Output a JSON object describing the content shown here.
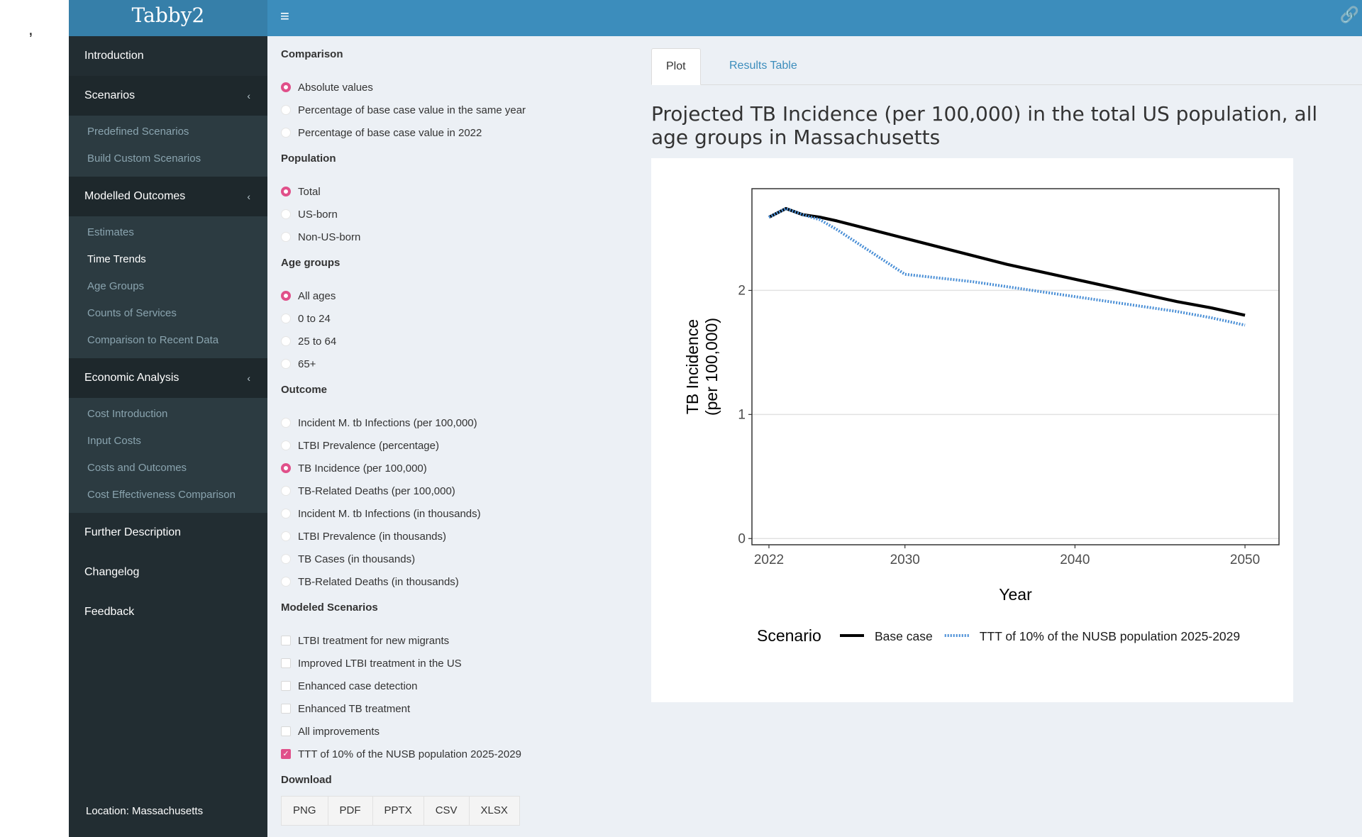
{
  "stray_mark": ",",
  "header": {
    "logo": "Tabby2",
    "menu_icon": "≡",
    "link_icon": "🔗"
  },
  "sidebar": {
    "items": [
      {
        "label": "Introduction"
      },
      {
        "label": "Scenarios",
        "chevron": "‹",
        "sub": [
          "Predefined Scenarios",
          "Build Custom Scenarios"
        ]
      },
      {
        "label": "Modelled Outcomes",
        "chevron": "‹",
        "sub": [
          "Estimates",
          "Time Trends",
          "Age Groups",
          "Counts of Services",
          "Comparison to Recent Data"
        ],
        "active_sub": "Time Trends"
      },
      {
        "label": "Economic Analysis",
        "chevron": "‹",
        "sub": [
          "Cost Introduction",
          "Input Costs",
          "Costs and Outcomes",
          "Cost Effectiveness Comparison"
        ]
      },
      {
        "label": "Further Description"
      },
      {
        "label": "Changelog"
      },
      {
        "label": "Feedback"
      }
    ],
    "location": "Location: Massachusetts"
  },
  "controls": {
    "comparison": {
      "heading": "Comparison",
      "options": [
        "Absolute values",
        "Percentage of base case value in the same year",
        "Percentage of base case value in 2022"
      ],
      "selected": 0
    },
    "population": {
      "heading": "Population",
      "options": [
        "Total",
        "US-born",
        "Non-US-born"
      ],
      "selected": 0
    },
    "age_groups": {
      "heading": "Age groups",
      "options": [
        "All ages",
        "0 to 24",
        "25 to 64",
        "65+"
      ],
      "selected": 0
    },
    "outcome": {
      "heading": "Outcome",
      "options": [
        "Incident M. tb Infections (per 100,000)",
        "LTBI Prevalence (percentage)",
        "TB Incidence (per 100,000)",
        "TB-Related Deaths (per 100,000)",
        "Incident M. tb Infections (in thousands)",
        "LTBI Prevalence (in thousands)",
        "TB Cases (in thousands)",
        "TB-Related Deaths (in thousands)"
      ],
      "selected": 2
    },
    "scenarios": {
      "heading": "Modeled Scenarios",
      "options": [
        "LTBI treatment for new migrants",
        "Improved LTBI treatment in the US",
        "Enhanced case detection",
        "Enhanced TB treatment",
        "All improvements",
        "TTT of 10% of the NUSB population 2025-2029"
      ],
      "checked": [
        5
      ]
    },
    "download": {
      "heading": "Download",
      "buttons": [
        "PNG",
        "PDF",
        "PPTX",
        "CSV",
        "XLSX"
      ]
    }
  },
  "tabs": [
    "Plot",
    "Results Table"
  ],
  "plot_title": "Projected TB Incidence (per 100,000) in the total US population, all age groups in Massachusetts",
  "chart_data": {
    "type": "line",
    "xlabel": "Year",
    "ylabel": "TB Incidence\n(per 100,000)",
    "xlim": [
      2021,
      2052
    ],
    "ylim": [
      -0.05,
      2.82
    ],
    "x_ticks": [
      2022,
      2030,
      2040,
      2050
    ],
    "y_ticks": [
      0,
      1,
      2
    ],
    "legend_title": "Scenario",
    "legend_position": "bottom",
    "series": [
      {
        "name": "Base case",
        "color": "#000000",
        "style": "solid",
        "x": [
          2022,
          2023,
          2024,
          2025,
          2026,
          2028,
          2030,
          2032,
          2034,
          2036,
          2038,
          2040,
          2042,
          2044,
          2046,
          2048,
          2050
        ],
        "y": [
          2.59,
          2.66,
          2.61,
          2.59,
          2.56,
          2.49,
          2.42,
          2.35,
          2.28,
          2.21,
          2.15,
          2.09,
          2.03,
          1.97,
          1.91,
          1.86,
          1.8
        ]
      },
      {
        "name": "TTT of 10% of the NUSB population 2025-2029",
        "color": "#4a8fd6",
        "style": "dotted",
        "x": [
          2022,
          2023,
          2024,
          2025,
          2026,
          2027,
          2028,
          2029,
          2030,
          2032,
          2034,
          2036,
          2038,
          2040,
          2042,
          2044,
          2046,
          2048,
          2050
        ],
        "y": [
          2.59,
          2.66,
          2.61,
          2.57,
          2.49,
          2.4,
          2.31,
          2.22,
          2.13,
          2.1,
          2.07,
          2.03,
          1.99,
          1.95,
          1.91,
          1.87,
          1.83,
          1.78,
          1.72
        ]
      }
    ]
  }
}
